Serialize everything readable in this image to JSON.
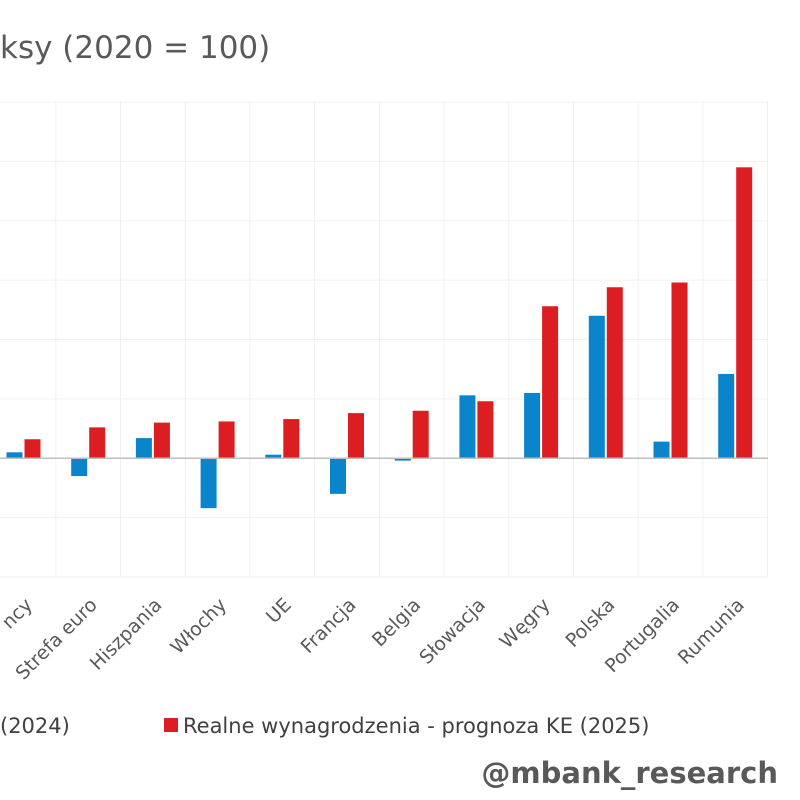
{
  "chart_data": {
    "type": "bar",
    "title": "ksy (2020 = 100)",
    "xlabel": "",
    "ylabel": "",
    "ylim": [
      -10,
      30
    ],
    "grid": true,
    "legend_position": "bottom",
    "categories": [
      "ncy",
      "Strefa euro",
      "Hiszpania",
      "Włochy",
      "UE",
      "Francja",
      "Belgia",
      "Słowacja",
      "Węgry",
      "Polska",
      "Portugalia",
      "Rumunia"
    ],
    "series": [
      {
        "name": "(2024)",
        "color": "#0a85cc",
        "values": [
          0.5,
          -1.5,
          1.7,
          -4.2,
          0.3,
          -3.0,
          -0.2,
          5.3,
          5.5,
          12.0,
          1.4,
          7.1
        ]
      },
      {
        "name": "Realne wynagrodzenia - prognoza KE (2025)",
        "color": "#dc1d22",
        "values": [
          1.6,
          2.6,
          3.0,
          3.1,
          3.3,
          3.8,
          4.0,
          4.8,
          12.8,
          14.4,
          14.8,
          24.5
        ]
      }
    ]
  },
  "watermark": "@mbank_research"
}
